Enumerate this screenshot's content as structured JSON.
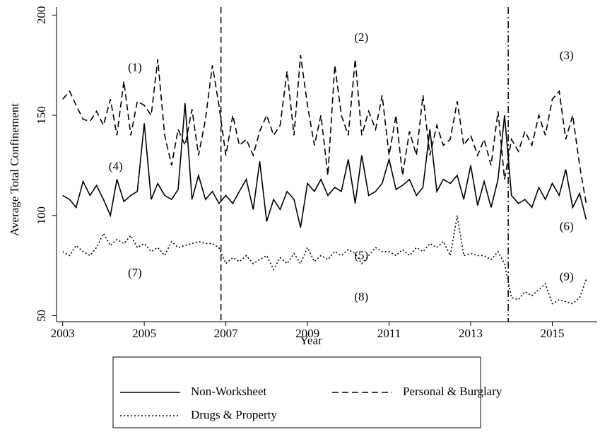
{
  "chart_data": {
    "type": "line",
    "x_label": "Year",
    "y_label": "Average Total Confinement",
    "xlim": [
      2002.85,
      2016.1
    ],
    "ylim": [
      47,
      204
    ],
    "xticks": [
      2003,
      2005,
      2007,
      2009,
      2011,
      2013,
      2015
    ],
    "yticks": [
      50,
      100,
      150,
      200
    ],
    "x": [
      2003,
      2003.17,
      2003.33,
      2003.5,
      2003.67,
      2003.83,
      2004,
      2004.17,
      2004.33,
      2004.5,
      2004.67,
      2004.83,
      2005,
      2005.17,
      2005.33,
      2005.5,
      2005.67,
      2005.83,
      2006,
      2006.17,
      2006.33,
      2006.5,
      2006.67,
      2006.83,
      2007,
      2007.17,
      2007.33,
      2007.5,
      2007.67,
      2007.83,
      2008,
      2008.17,
      2008.33,
      2008.5,
      2008.67,
      2008.83,
      2009,
      2009.17,
      2009.33,
      2009.5,
      2009.67,
      2009.83,
      2010,
      2010.17,
      2010.33,
      2010.5,
      2010.67,
      2010.83,
      2011,
      2011.17,
      2011.33,
      2011.5,
      2011.67,
      2011.83,
      2012,
      2012.17,
      2012.33,
      2012.5,
      2012.67,
      2012.83,
      2013,
      2013.17,
      2013.33,
      2013.5,
      2013.67,
      2013.83,
      2014,
      2014.17,
      2014.33,
      2014.5,
      2014.67,
      2014.83,
      2015,
      2015.17,
      2015.33,
      2015.5,
      2015.67,
      2015.83
    ],
    "series": [
      {
        "name": "Non-Worksheet",
        "color": "#000000",
        "dash": "solid",
        "values": [
          110,
          108,
          104,
          117,
          110,
          115,
          108,
          100,
          118,
          107,
          110,
          112,
          146,
          108,
          116,
          110,
          108,
          113,
          156,
          108,
          120,
          108,
          112,
          106,
          110,
          106,
          112,
          118,
          103,
          127,
          97,
          108,
          103,
          112,
          108,
          94,
          116,
          112,
          118,
          110,
          114,
          112,
          128,
          106,
          130,
          110,
          112,
          116,
          128,
          113,
          115,
          118,
          110,
          114,
          143,
          112,
          118,
          116,
          120,
          108,
          125,
          105,
          117,
          104,
          118,
          150,
          110,
          106,
          108,
          104,
          114,
          108,
          116,
          110,
          123,
          104,
          111,
          98
        ]
      },
      {
        "name": "Personal & Burglary",
        "color": "#000000",
        "dash": "dashed",
        "values": [
          158,
          162,
          155,
          148,
          147,
          152,
          145,
          158,
          140,
          167,
          140,
          157,
          155,
          150,
          178,
          140,
          125,
          143,
          135,
          153,
          130,
          148,
          175,
          155,
          130,
          150,
          135,
          138,
          130,
          142,
          150,
          140,
          145,
          172,
          140,
          180,
          155,
          135,
          150,
          120,
          175,
          150,
          140,
          178,
          140,
          152,
          143,
          160,
          130,
          150,
          120,
          142,
          130,
          160,
          130,
          145,
          135,
          138,
          157,
          135,
          140,
          130,
          138,
          125,
          152,
          118,
          138,
          132,
          142,
          135,
          150,
          140,
          158,
          162,
          138,
          150,
          125,
          106
        ]
      },
      {
        "name": "Drugs & Property",
        "color": "#000000",
        "dash": "dotted",
        "values": [
          82,
          80,
          85,
          82,
          80,
          84,
          91,
          85,
          88,
          86,
          90,
          84,
          86,
          82,
          84,
          80,
          87,
          84,
          85,
          86,
          87,
          86,
          86,
          84,
          76,
          79,
          77,
          80,
          76,
          78,
          80,
          73,
          79,
          76,
          81,
          76,
          84,
          77,
          80,
          78,
          82,
          80,
          83,
          81,
          76,
          80,
          84,
          82,
          82,
          80,
          83,
          80,
          84,
          82,
          86,
          84,
          87,
          80,
          100,
          80,
          81,
          80,
          80,
          78,
          82,
          76,
          59,
          58,
          62,
          60,
          63,
          66,
          56,
          58,
          57,
          56,
          59,
          68
        ]
      }
    ],
    "vlines": [
      {
        "x": 2006.88,
        "style": "dashed"
      },
      {
        "x": 2013.92,
        "style": "dashdot"
      }
    ],
    "annotations": [
      {
        "text": "(1)",
        "x": 2004.77,
        "y": 173.5
      },
      {
        "text": "(2)",
        "x": 2010.32,
        "y": 188.4
      },
      {
        "text": "(3)",
        "x": 2015.35,
        "y": 179.5
      },
      {
        "text": "(4)",
        "x": 2004.3,
        "y": 124
      },
      {
        "text": "(5)",
        "x": 2010.32,
        "y": 79.6
      },
      {
        "text": "(6)",
        "x": 2015.35,
        "y": 94
      },
      {
        "text": "(7)",
        "x": 2004.77,
        "y": 71
      },
      {
        "text": "(8)",
        "x": 2010.32,
        "y": 59
      },
      {
        "text": "(9)",
        "x": 2015.35,
        "y": 69
      }
    ],
    "legend": "bottom"
  }
}
